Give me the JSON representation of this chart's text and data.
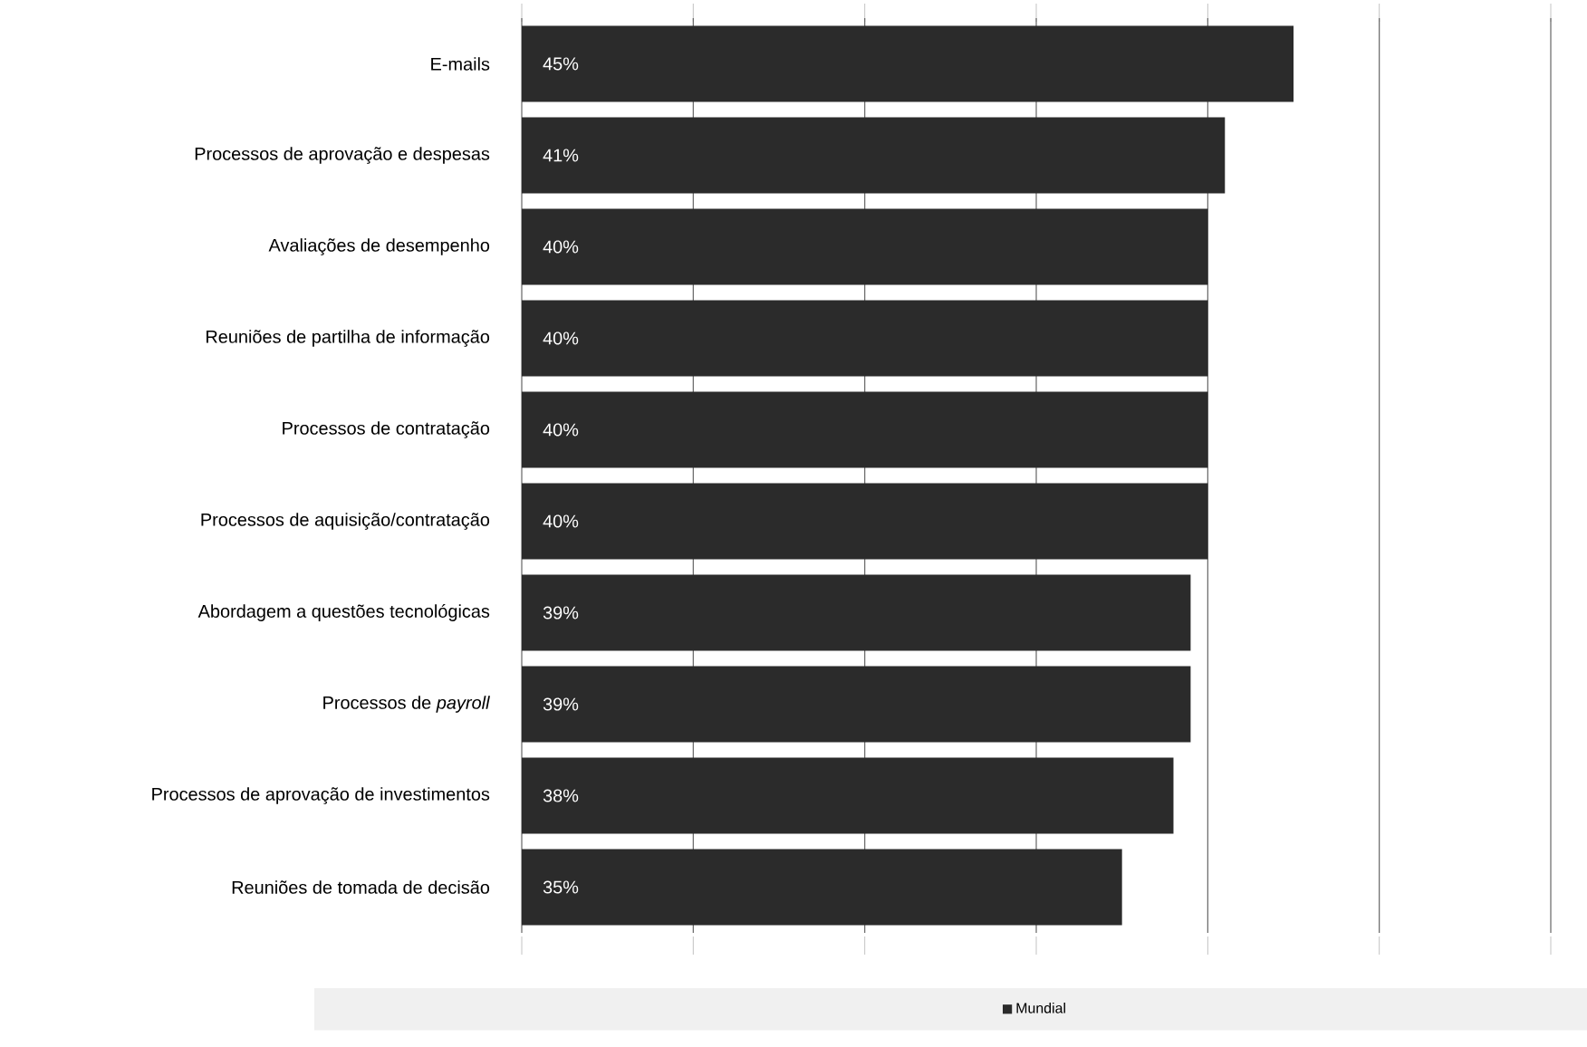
{
  "chart_data": {
    "type": "bar",
    "orientation": "horizontal",
    "categories": [
      "E-mails",
      "Processos de aprovação e despesas",
      "Avaliações de desempenho",
      "Reuniões de partilha de informação",
      "Processos de contratação",
      "Processos de aquisição/contratação",
      "Abordagem a questões tecnológicas",
      "Processos de *payroll*",
      "Processos de aprovação de investimentos",
      "Reuniões de tomada de decisão"
    ],
    "series": [
      {
        "name": "Mundial",
        "color": "#2b2b2b",
        "values": [
          45,
          41,
          40,
          40,
          40,
          40,
          39,
          39,
          38,
          35
        ],
        "value_labels": [
          "45%",
          "41%",
          "40%",
          "40%",
          "40%",
          "40%",
          "39%",
          "39%",
          "38%",
          "35%"
        ]
      }
    ],
    "xlim": [
      0,
      60
    ],
    "xticks": [
      {
        "value": 0,
        "label": null
      },
      {
        "value": 10,
        "label": null
      },
      {
        "value": 20,
        "label": null
      },
      {
        "value": 30,
        "label": null
      },
      {
        "value": 40,
        "label": null
      },
      {
        "value": 50,
        "label": null
      },
      {
        "value": 60,
        "label": null
      }
    ],
    "tick_labels": "y",
    "grid": "x",
    "legend": "bottom"
  }
}
